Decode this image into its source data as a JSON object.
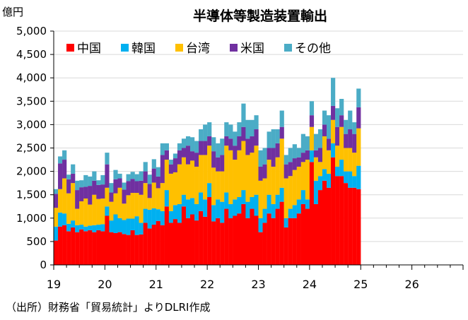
{
  "chart_data": {
    "type": "bar",
    "stacked": true,
    "title": "半導体等製造装置輸出",
    "unit_label": "億円",
    "source": "（出所）財務省「貿易統計」よりDLRI作成",
    "ylim": [
      0,
      5000
    ],
    "yticks": [
      0,
      500,
      1000,
      1500,
      2000,
      2500,
      3000,
      3500,
      4000,
      4500,
      5000
    ],
    "ytick_labels": [
      "0",
      "500",
      "1,000",
      "1,500",
      "2,000",
      "2,500",
      "3,000",
      "3,500",
      "4,000",
      "4,500",
      "5,000"
    ],
    "xlim": [
      0,
      96
    ],
    "xticks": [
      {
        "pos": 0,
        "label": "19"
      },
      {
        "pos": 12,
        "label": "20"
      },
      {
        "pos": 24,
        "label": "21"
      },
      {
        "pos": 36,
        "label": "22"
      },
      {
        "pos": 48,
        "label": "23"
      },
      {
        "pos": 60,
        "label": "24"
      },
      {
        "pos": 72,
        "label": "25"
      },
      {
        "pos": 84,
        "label": "26"
      }
    ],
    "series_colors": [
      "#FF0000",
      "#00B0F0",
      "#FFC000",
      "#7030A0",
      "#4BACC6"
    ],
    "series": [
      {
        "name": "中国",
        "values": [
          520,
          820,
          850,
          720,
          800,
          700,
          760,
          720,
          740,
          700,
          740,
          720,
          1050,
          700,
          680,
          700,
          660,
          640,
          740,
          640,
          650,
          900,
          780,
          860,
          940,
          850,
          1250,
          900,
          980,
          900,
          1250,
          1000,
          1080,
          950,
          1150,
          1030,
          1450,
          930,
          1000,
          900,
          1200,
          1000,
          1050,
          1100,
          1300,
          1000,
          1200,
          1050,
          700,
          900,
          1100,
          1000,
          1200,
          1350,
          800,
          1000,
          1000,
          1100,
          1300,
          1200,
          2200,
          1300,
          1600,
          1800,
          1650,
          2300,
          1900,
          1900,
          1750,
          1650,
          1650,
          1620
        ]
      },
      {
        "name": "韓国",
        "values": [
          300,
          300,
          250,
          160,
          150,
          150,
          100,
          100,
          100,
          150,
          120,
          150,
          200,
          250,
          400,
          300,
          300,
          350,
          250,
          400,
          250,
          300,
          400,
          350,
          250,
          300,
          350,
          250,
          300,
          400,
          250,
          400,
          350,
          350,
          400,
          370,
          300,
          350,
          400,
          450,
          350,
          300,
          350,
          350,
          300,
          350,
          250,
          450,
          300,
          300,
          400,
          300,
          300,
          300,
          200,
          200,
          280,
          300,
          300,
          200,
          250,
          500,
          300,
          250,
          300,
          300,
          200,
          350,
          250,
          350,
          250,
          500
        ]
      },
      {
        "name": "台湾",
        "values": [
          400,
          500,
          750,
          650,
          800,
          350,
          500,
          600,
          450,
          650,
          550,
          550,
          400,
          400,
          450,
          650,
          350,
          500,
          550,
          500,
          600,
          550,
          250,
          550,
          450,
          600,
          650,
          800,
          700,
          850,
          800,
          750,
          800,
          800,
          800,
          950,
          800,
          800,
          600,
          650,
          1000,
          1150,
          850,
          1000,
          1050,
          1000,
          950,
          1050,
          800,
          650,
          750,
          800,
          800,
          1050,
          850,
          700,
          750,
          700,
          600,
          850,
          500,
          500,
          300,
          700,
          500,
          500,
          450,
          700,
          500,
          500,
          500,
          800
        ]
      },
      {
        "name": "米国",
        "values": [
          300,
          550,
          400,
          300,
          200,
          400,
          300,
          250,
          400,
          300,
          300,
          300,
          500,
          200,
          300,
          200,
          300,
          300,
          300,
          250,
          300,
          250,
          300,
          300,
          250,
          600,
          200,
          200,
          300,
          300,
          200,
          400,
          200,
          300,
          300,
          300,
          200,
          350,
          300,
          350,
          200,
          250,
          300,
          300,
          300,
          350,
          350,
          350,
          300,
          300,
          250,
          400,
          300,
          250,
          300,
          300,
          250,
          200,
          200,
          200,
          250,
          150,
          300,
          250,
          250,
          300,
          400,
          250,
          300,
          400,
          400,
          450
        ]
      },
      {
        "name": "その他",
        "values": [
          100,
          150,
          200,
          100,
          200,
          200,
          150,
          250,
          200,
          200,
          100,
          200,
          250,
          200,
          200,
          100,
          150,
          150,
          150,
          150,
          200,
          200,
          200,
          200,
          200,
          250,
          150,
          100,
          100,
          150,
          200,
          200,
          300,
          250,
          250,
          350,
          300,
          300,
          300,
          350,
          300,
          300,
          300,
          300,
          500,
          400,
          350,
          300,
          350,
          350,
          350,
          400,
          300,
          350,
          200,
          300,
          300,
          200,
          400,
          300,
          300,
          350,
          400,
          300,
          500,
          600,
          400,
          350,
          300,
          400,
          250,
          400
        ]
      }
    ]
  }
}
